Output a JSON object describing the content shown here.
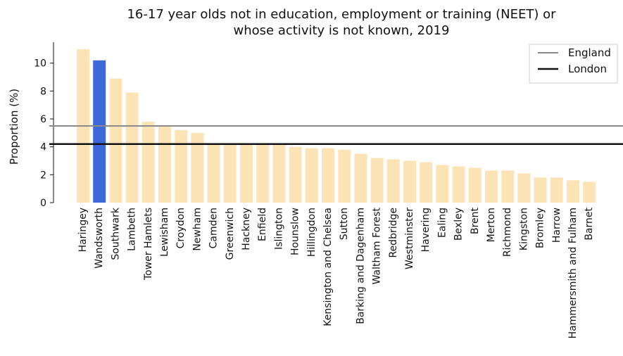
{
  "chart_data": {
    "type": "bar",
    "title_line1": "16-17 year olds not in education, employment or training (NEET) or",
    "title_line2": "whose activity is not known, 2019",
    "xlabel": "",
    "ylabel": "Proportion (%)",
    "ylim": [
      0,
      11.5
    ],
    "yticks": [
      0,
      2,
      4,
      6,
      8,
      10
    ],
    "grid": false,
    "legend_position": "top-right",
    "categories": [
      "Haringey",
      "Wandsworth",
      "Southwark",
      "Lambeth",
      "Tower Hamlets",
      "Lewisham",
      "Croydon",
      "Newham",
      "Camden",
      "Greenwich",
      "Hackney",
      "Enfield",
      "Islington",
      "Hounslow",
      "Hillingdon",
      "Kensington and Chelsea",
      "Sutton",
      "Barking and Dagenham",
      "Waltham Forest",
      "Redbridge",
      "Westminster",
      "Havering",
      "Ealing",
      "Bexley",
      "Brent",
      "Merton",
      "Richmond",
      "Kingston",
      "Bromley",
      "Harrow",
      "Hammersmith and Fulham",
      "Barnet"
    ],
    "values": [
      11.0,
      10.2,
      8.9,
      7.9,
      5.8,
      5.5,
      5.2,
      5.0,
      4.2,
      4.2,
      4.2,
      4.2,
      4.2,
      4.0,
      3.9,
      3.9,
      3.8,
      3.5,
      3.2,
      3.1,
      3.0,
      2.9,
      2.7,
      2.6,
      2.5,
      2.3,
      2.3,
      2.1,
      1.8,
      1.8,
      1.6,
      1.5
    ],
    "highlight_category": "Wandsworth",
    "colors": {
      "bar": "#fde4b7",
      "highlight": "#3d68d9",
      "england_line": "#8a8a8a",
      "london_line": "#111111"
    },
    "reference_lines": [
      {
        "name": "England",
        "value": 5.5
      },
      {
        "name": "London",
        "value": 4.2
      }
    ]
  }
}
